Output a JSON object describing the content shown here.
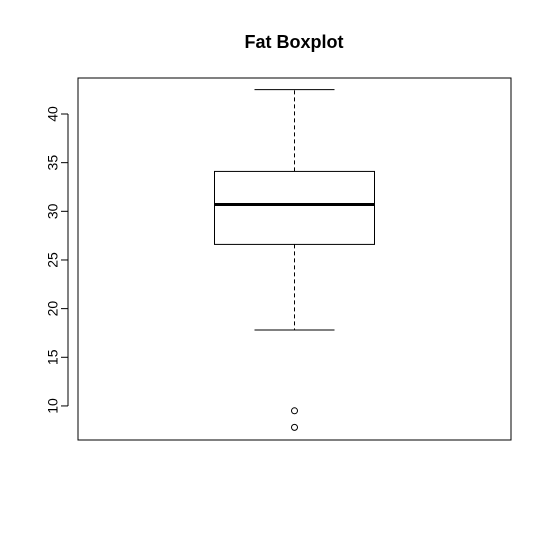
{
  "chart_data": {
    "type": "boxplot",
    "title": "Fat Boxplot",
    "xlabel": "",
    "ylabel": "",
    "ylim": [
      6.5,
      43.7
    ],
    "yticks": [
      10,
      15,
      20,
      25,
      30,
      35,
      40
    ],
    "ytick_labels": [
      "10",
      "15",
      "20",
      "25",
      "30",
      "35",
      "40"
    ],
    "grid": false,
    "series": [
      {
        "whisker_low": 17.8,
        "q1": 26.6,
        "median": 30.7,
        "q3": 34.1,
        "whisker_high": 42.5,
        "outliers": [
          9.5,
          7.8
        ]
      }
    ],
    "colors": {
      "line": "#000000",
      "background": "#ffffff"
    }
  }
}
